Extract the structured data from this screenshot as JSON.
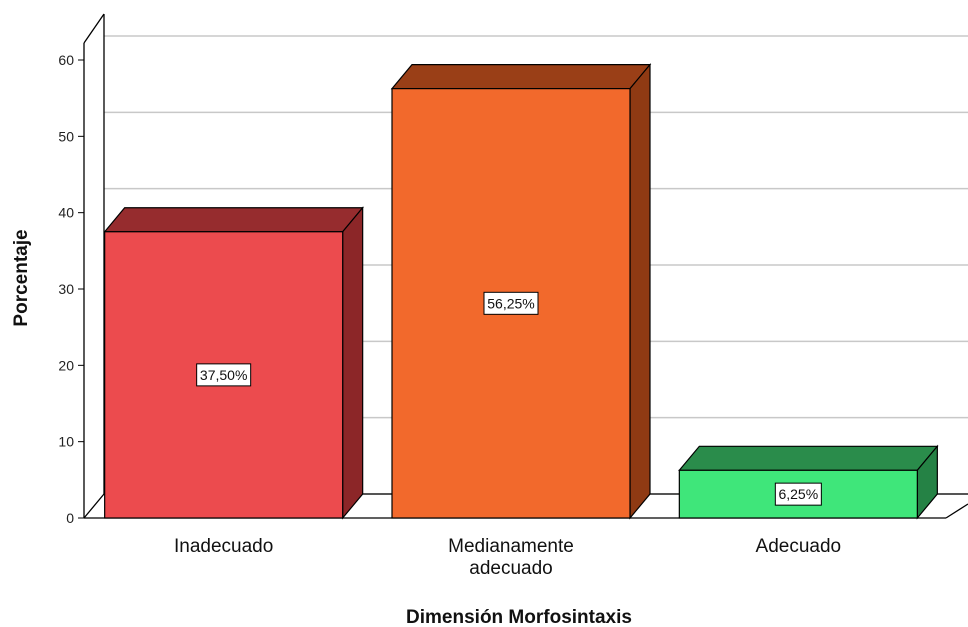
{
  "chart_data": {
    "type": "bar",
    "style": "3d",
    "categories": [
      "Inadecuado",
      "Medianamente adecuado",
      "Adecuado"
    ],
    "category_lines": [
      [
        "Inadecuado"
      ],
      [
        "Medianamente",
        "adecuado"
      ],
      [
        "Adecuado"
      ]
    ],
    "values": [
      37.5,
      56.25,
      6.25
    ],
    "value_labels": [
      "37,50%",
      "56,25%",
      "6,25%"
    ],
    "xlabel": "Dimensión Morfosintaxis",
    "ylabel": "Porcentaje",
    "ylim": [
      0,
      60
    ],
    "yticks": [
      0,
      10,
      20,
      30,
      40,
      50,
      60
    ],
    "grid": true,
    "colors": {
      "front": [
        "#ec4b4e",
        "#f2692c",
        "#3fe67a"
      ],
      "top": [
        "#962c2e",
        "#9a3f17",
        "#2a8c4b"
      ],
      "side": [
        "#8c2628",
        "#8f3a13",
        "#258245"
      ],
      "grid": "#c8c8c8",
      "axis": "#000000"
    }
  }
}
